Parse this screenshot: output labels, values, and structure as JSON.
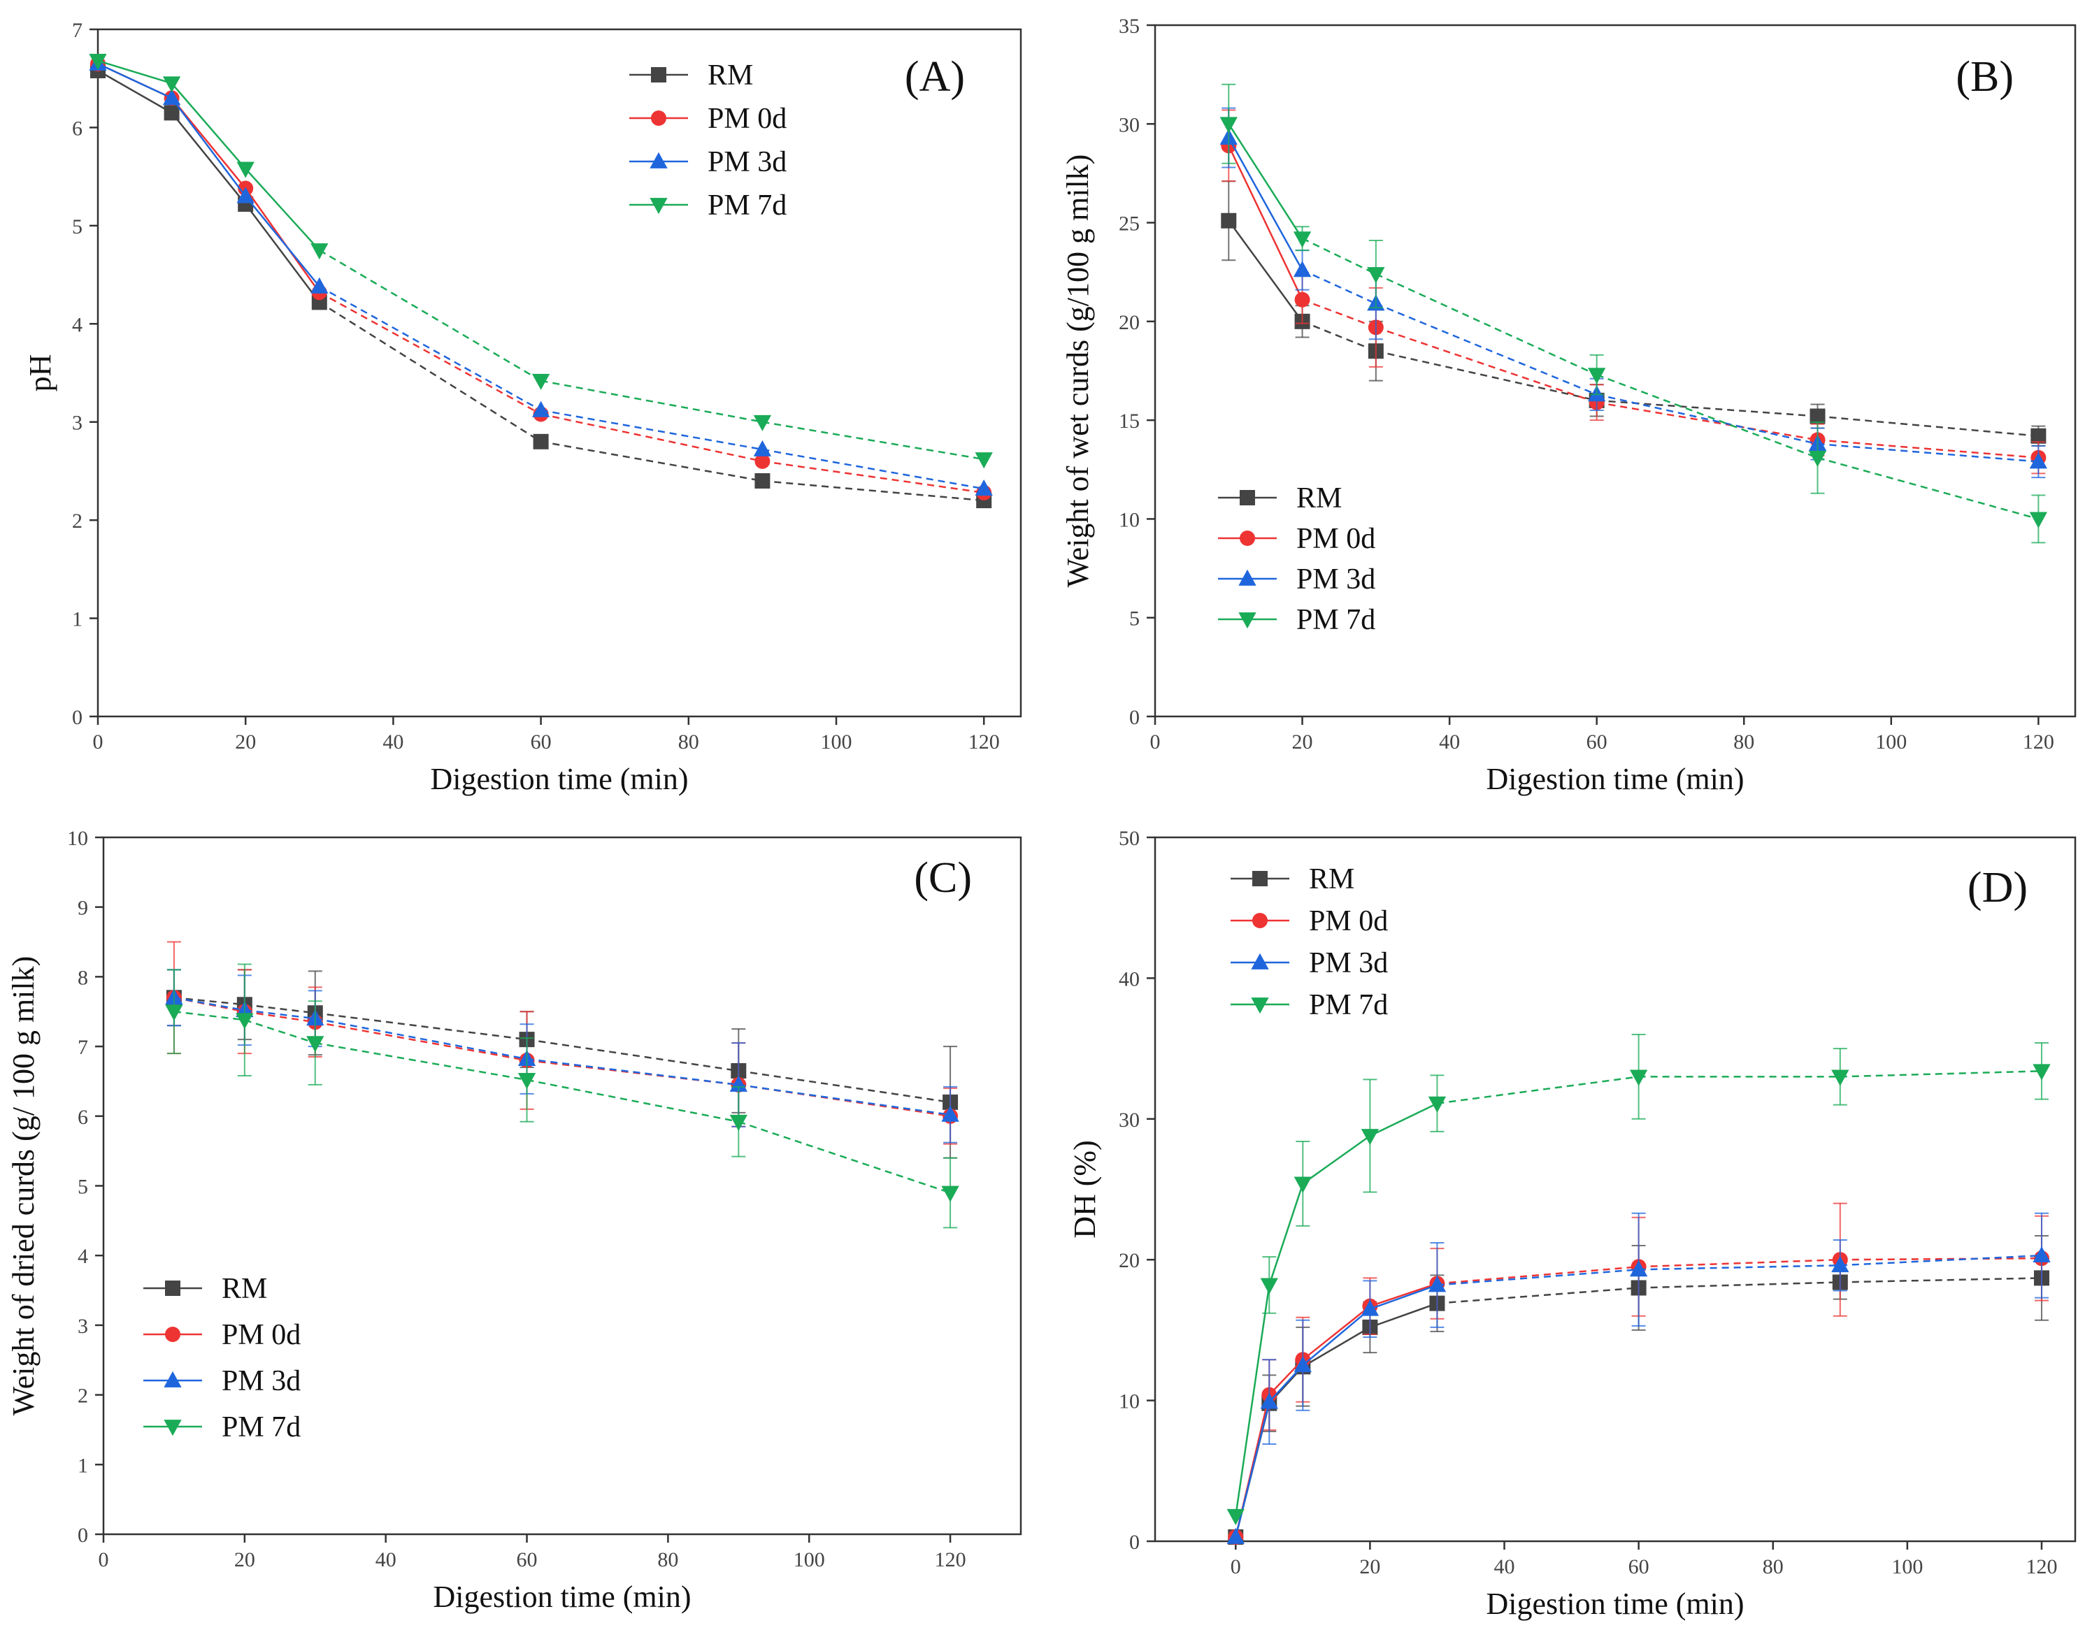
{
  "figure": {
    "panels": [
      "A",
      "B",
      "C",
      "D"
    ]
  },
  "series_styles": [
    {
      "name": "RM",
      "color": "#444444",
      "marker": "square"
    },
    {
      "name": "PM 0d",
      "color": "#ee3333",
      "marker": "circle"
    },
    {
      "name": "PM 3d",
      "color": "#1f66dd",
      "marker": "triangle-up"
    },
    {
      "name": "PM 7d",
      "color": "#1aab57",
      "marker": "triangle-down"
    }
  ],
  "chart_data": [
    {
      "type": "line",
      "panel_label": "(A)",
      "xlabel": "Digestion time (min)",
      "ylabel": "pH",
      "xlim": [
        0,
        125
      ],
      "ylim": [
        0,
        7
      ],
      "xticks": [
        "0",
        "20",
        "40",
        "60",
        "80",
        "100",
        "120"
      ],
      "yticks": [
        "0",
        "1",
        "2",
        "3",
        "4",
        "5",
        "6",
        "7"
      ],
      "legend": [
        "RM",
        "PM 0d",
        "PM 3d",
        "PM 7d"
      ],
      "legend_position": "top-right",
      "x": [
        0,
        10,
        20,
        30,
        60,
        90,
        120
      ],
      "series": [
        {
          "name": "RM",
          "values": [
            6.58,
            6.15,
            5.22,
            4.22,
            2.8,
            2.4,
            2.2
          ],
          "errors": [
            0,
            0,
            0,
            0,
            0,
            0,
            0
          ]
        },
        {
          "name": "PM 0d",
          "values": [
            6.65,
            6.3,
            5.38,
            4.32,
            3.08,
            2.6,
            2.28
          ],
          "errors": [
            0,
            0,
            0,
            0,
            0,
            0,
            0
          ]
        },
        {
          "name": "PM 3d",
          "values": [
            6.65,
            6.3,
            5.3,
            4.38,
            3.12,
            2.72,
            2.32
          ],
          "errors": [
            0,
            0,
            0,
            0,
            0,
            0,
            0
          ]
        },
        {
          "name": "PM 7d",
          "values": [
            6.68,
            6.45,
            5.58,
            4.75,
            3.42,
            3.0,
            2.62
          ],
          "errors": [
            0,
            0,
            0,
            0,
            0,
            0,
            0
          ]
        }
      ]
    },
    {
      "type": "line",
      "panel_label": "(B)",
      "xlabel": "Digestion time (min)",
      "ylabel": "Weight of wet curds (g/100 g milk)",
      "xlim": [
        0,
        125
      ],
      "ylim": [
        0,
        35
      ],
      "xticks": [
        "0",
        "20",
        "40",
        "60",
        "80",
        "100",
        "120"
      ],
      "yticks": [
        "0",
        "5",
        "10",
        "15",
        "20",
        "25",
        "30",
        "35"
      ],
      "legend": [
        "RM",
        "PM 0d",
        "PM 3d",
        "PM 7d"
      ],
      "legend_position": "bottom-left",
      "x": [
        10,
        20,
        30,
        60,
        90,
        120
      ],
      "series": [
        {
          "name": "RM",
          "values": [
            25.1,
            20.0,
            18.5,
            16.0,
            15.2,
            14.2
          ],
          "errors": [
            2.0,
            0.8,
            1.5,
            0.8,
            0.6,
            0.5
          ]
        },
        {
          "name": "PM 0d",
          "values": [
            28.9,
            21.1,
            19.7,
            15.9,
            14.0,
            13.1
          ],
          "errors": [
            1.8,
            1.2,
            2.0,
            0.9,
            0.8,
            0.8
          ]
        },
        {
          "name": "PM 3d",
          "values": [
            29.3,
            22.6,
            20.9,
            16.3,
            13.8,
            12.9
          ],
          "errors": [
            1.5,
            1.0,
            1.8,
            0.8,
            0.8,
            0.8
          ]
        },
        {
          "name": "PM 7d",
          "values": [
            30.0,
            24.2,
            22.4,
            17.3,
            13.1,
            10.0
          ],
          "errors": [
            2.0,
            0.6,
            1.7,
            1.0,
            1.8,
            1.2
          ]
        }
      ]
    },
    {
      "type": "line",
      "panel_label": "(C)",
      "xlabel": "Digestion time (min)",
      "ylabel": "Weight of dried curds (g/ 100 g milk)",
      "xlim": [
        0,
        130
      ],
      "ylim": [
        0,
        10
      ],
      "xticks": [
        "0",
        "20",
        "40",
        "60",
        "80",
        "100",
        "120"
      ],
      "yticks": [
        "0",
        "1",
        "2",
        "3",
        "4",
        "5",
        "6",
        "7",
        "8",
        "9",
        "10"
      ],
      "legend": [
        "RM",
        "PM 0d",
        "PM 3d",
        "PM 7d"
      ],
      "legend_position": "bottom-left",
      "x": [
        10,
        20,
        30,
        60,
        90,
        120
      ],
      "series": [
        {
          "name": "RM",
          "values": [
            7.7,
            7.6,
            7.48,
            7.1,
            6.65,
            6.2
          ],
          "errors": [
            0.4,
            0.5,
            0.6,
            0.4,
            0.6,
            0.8
          ]
        },
        {
          "name": "PM 0d",
          "values": [
            7.7,
            7.5,
            7.35,
            6.8,
            6.45,
            6.0
          ],
          "errors": [
            0.8,
            0.6,
            0.5,
            0.7,
            0.6,
            0.4
          ]
        },
        {
          "name": "PM 3d",
          "values": [
            7.7,
            7.52,
            7.4,
            6.82,
            6.45,
            6.02
          ],
          "errors": [
            0.4,
            0.5,
            0.4,
            0.5,
            0.6,
            0.4
          ]
        },
        {
          "name": "PM 7d",
          "values": [
            7.5,
            7.38,
            7.05,
            6.52,
            5.92,
            4.9
          ],
          "errors": [
            0.6,
            0.8,
            0.6,
            0.6,
            0.5,
            0.5
          ]
        }
      ]
    },
    {
      "type": "line",
      "panel_label": "(D)",
      "xlabel": "Digestion time (min)",
      "ylabel": "DH (%)",
      "xlim": [
        -12,
        125
      ],
      "ylim": [
        0,
        50
      ],
      "xticks": [
        "0",
        "20",
        "40",
        "60",
        "80",
        "100",
        "120"
      ],
      "yticks": [
        "0",
        "10",
        "20",
        "30",
        "40",
        "50"
      ],
      "legend": [
        "RM",
        "PM 0d",
        "PM 3d",
        "PM 7d"
      ],
      "legend_position": "top-left",
      "x": [
        0,
        5,
        10,
        20,
        30,
        60,
        90,
        120
      ],
      "series": [
        {
          "name": "RM",
          "values": [
            0.3,
            9.8,
            12.4,
            15.2,
            16.9,
            18.0,
            18.4,
            18.7
          ],
          "errors": [
            0,
            2.0,
            2.8,
            1.8,
            2.0,
            3.0,
            1.2,
            3.0
          ]
        },
        {
          "name": "PM 0d",
          "values": [
            0.3,
            10.4,
            12.9,
            16.7,
            18.3,
            19.5,
            20.0,
            20.1
          ],
          "errors": [
            0,
            2.5,
            3.0,
            2.0,
            2.5,
            3.5,
            4.0,
            3.0
          ]
        },
        {
          "name": "PM 3d",
          "values": [
            0.3,
            9.9,
            12.5,
            16.5,
            18.2,
            19.3,
            19.6,
            20.3
          ],
          "errors": [
            0,
            3.0,
            3.2,
            2.0,
            3.0,
            4.0,
            1.8,
            3.0
          ]
        },
        {
          "name": "PM 7d",
          "values": [
            1.8,
            18.2,
            25.4,
            28.8,
            31.1,
            33.0,
            33.0,
            33.4
          ],
          "errors": [
            0,
            2.0,
            3.0,
            4.0,
            2.0,
            3.0,
            2.0,
            2.0
          ]
        }
      ]
    }
  ]
}
